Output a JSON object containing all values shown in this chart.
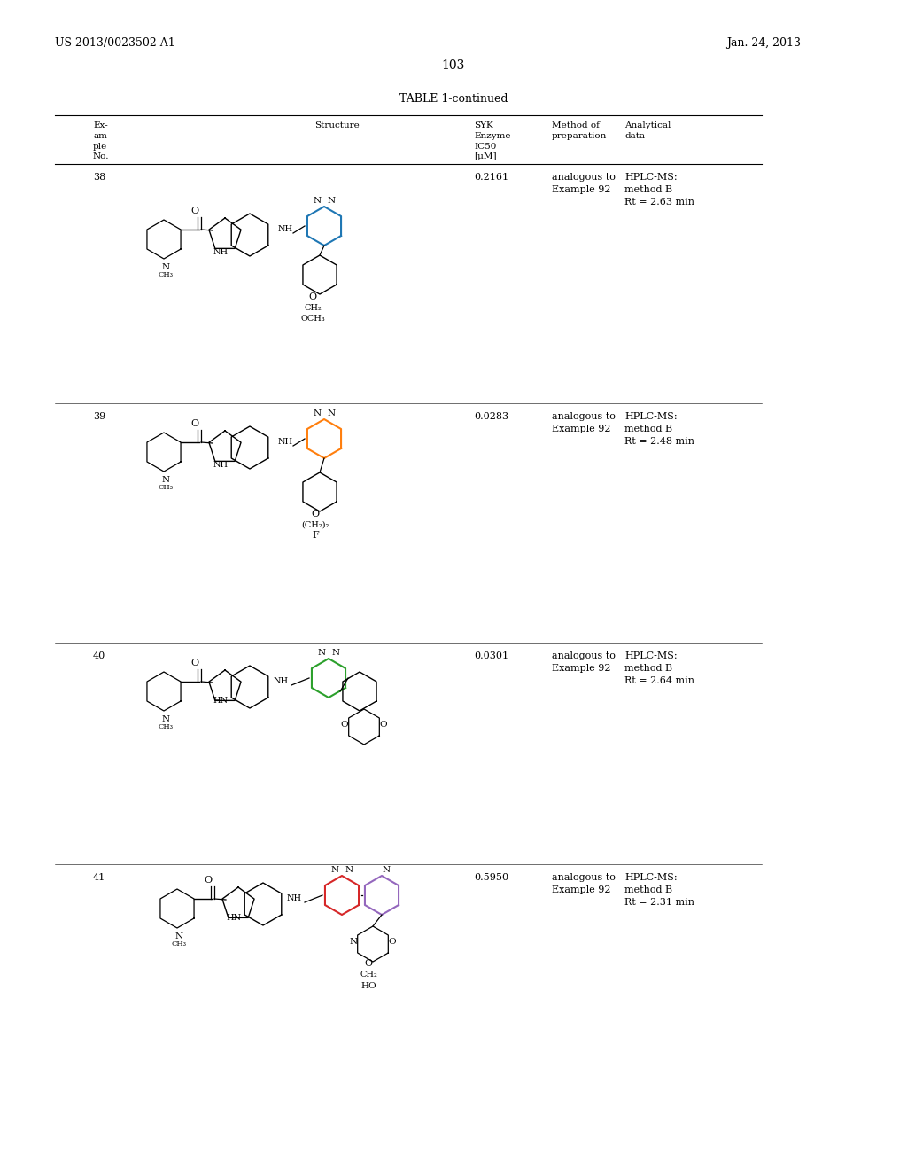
{
  "page_number": "103",
  "patent_number": "US 2013/0023502 A1",
  "patent_date": "Jan. 24, 2013",
  "table_title": "TABLE 1-continued",
  "header": {
    "col1": "Ex-\nam-\nple\nNo.",
    "col2": "Structure",
    "col3": "SYK\nEnzyme\nIC50\n[μM]",
    "col4": "Method of\npreparation",
    "col5": "Analytical\ndata"
  },
  "rows": [
    {
      "example": "38",
      "ic50": "0.2161",
      "method": "analogous to\nExample 92",
      "analytical": "HPLC-MS:\nmethod B\nRt = 2.63 min"
    },
    {
      "example": "39",
      "ic50": "0.0283",
      "method": "analogous to\nExample 92",
      "analytical": "HPLC-MS:\nmethod B\nRt = 2.48 min"
    },
    {
      "example": "40",
      "ic50": "0.0301",
      "method": "analogous to\nExample 92",
      "analytical": "HPLC-MS:\nmethod B\nRt = 2.64 min"
    },
    {
      "example": "41",
      "ic50": "0.5950",
      "method": "analogous to\nExample 92",
      "analytical": "HPLC-MS:\nmethod B\nRt = 2.31 min"
    }
  ],
  "bg_color": "#ffffff",
  "text_color": "#000000",
  "font_size": 8.5,
  "header_font_size": 8.5
}
